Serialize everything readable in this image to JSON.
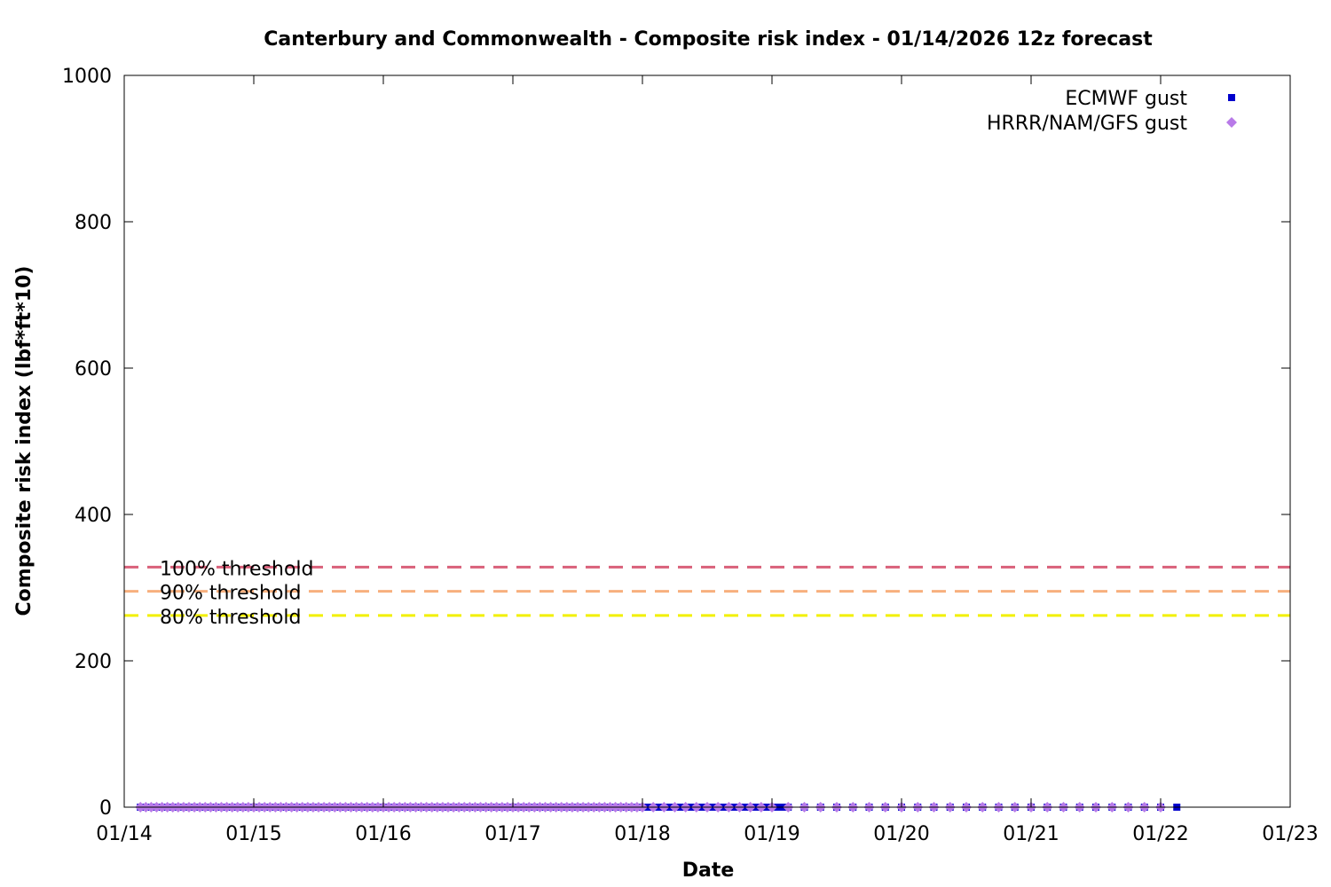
{
  "chart_data": {
    "type": "scatter",
    "title": "Canterbury and Commonwealth - Composite risk index - 01/14/2026 12z forecast",
    "xlabel": "Date",
    "ylabel": "Composite risk index (lbf*ft*10)",
    "x_ticks": [
      "01/14",
      "01/15",
      "01/16",
      "01/17",
      "01/18",
      "01/19",
      "01/20",
      "01/21",
      "01/22",
      "01/23"
    ],
    "y_ticks": [
      0,
      200,
      400,
      600,
      800,
      1000
    ],
    "xlim": [
      "01/14",
      "01/23"
    ],
    "ylim": [
      0,
      1000
    ],
    "grid": false,
    "legend_position": "top-right",
    "thresholds": [
      {
        "name": "100% threshold",
        "value": 328,
        "color": "#d9607a"
      },
      {
        "name": "90% threshold",
        "value": 295,
        "color": "#f7b07e"
      },
      {
        "name": "80% threshold",
        "value": 262,
        "color": "#f2f000"
      }
    ],
    "series": [
      {
        "name": "ECMWF gust",
        "marker": "square",
        "color": "#0000cc",
        "x_start": "01/14 03z",
        "x_end": "01/22 03z",
        "dense_until": "01/19 03z",
        "dense_step_hours": 1,
        "sparse_step_hours": 3,
        "y_value": 0
      },
      {
        "name": "HRRR/NAM/GFS gust",
        "marker": "diamond",
        "color": "#b87ae8",
        "x_start": "01/14 03z",
        "x_end": "01/22 00z",
        "dense_until": "01/18 00z",
        "mid_until": "01/19 00z",
        "dense_step_hours": 1,
        "mid_step_hours": 2,
        "sparse_step_hours": 3,
        "y_value": 0
      }
    ]
  }
}
